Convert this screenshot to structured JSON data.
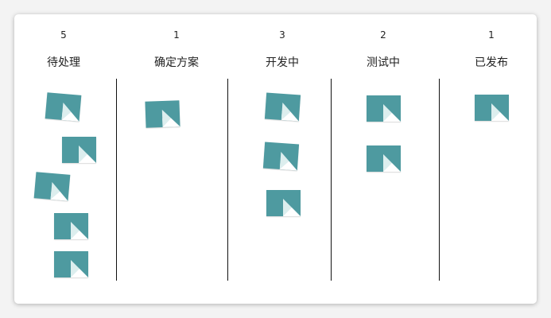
{
  "board": {
    "columns": [
      {
        "title": "待处理",
        "count": "5"
      },
      {
        "title": "确定方案",
        "count": "1"
      },
      {
        "title": "开发中",
        "count": "3"
      },
      {
        "title": "测试中",
        "count": "2"
      },
      {
        "title": "已发布",
        "count": "1"
      }
    ]
  },
  "colors": {
    "note": "#4e9aa0",
    "board_bg": "#ffffff",
    "page_bg": "#f3f3f3",
    "divider": "#111111"
  }
}
